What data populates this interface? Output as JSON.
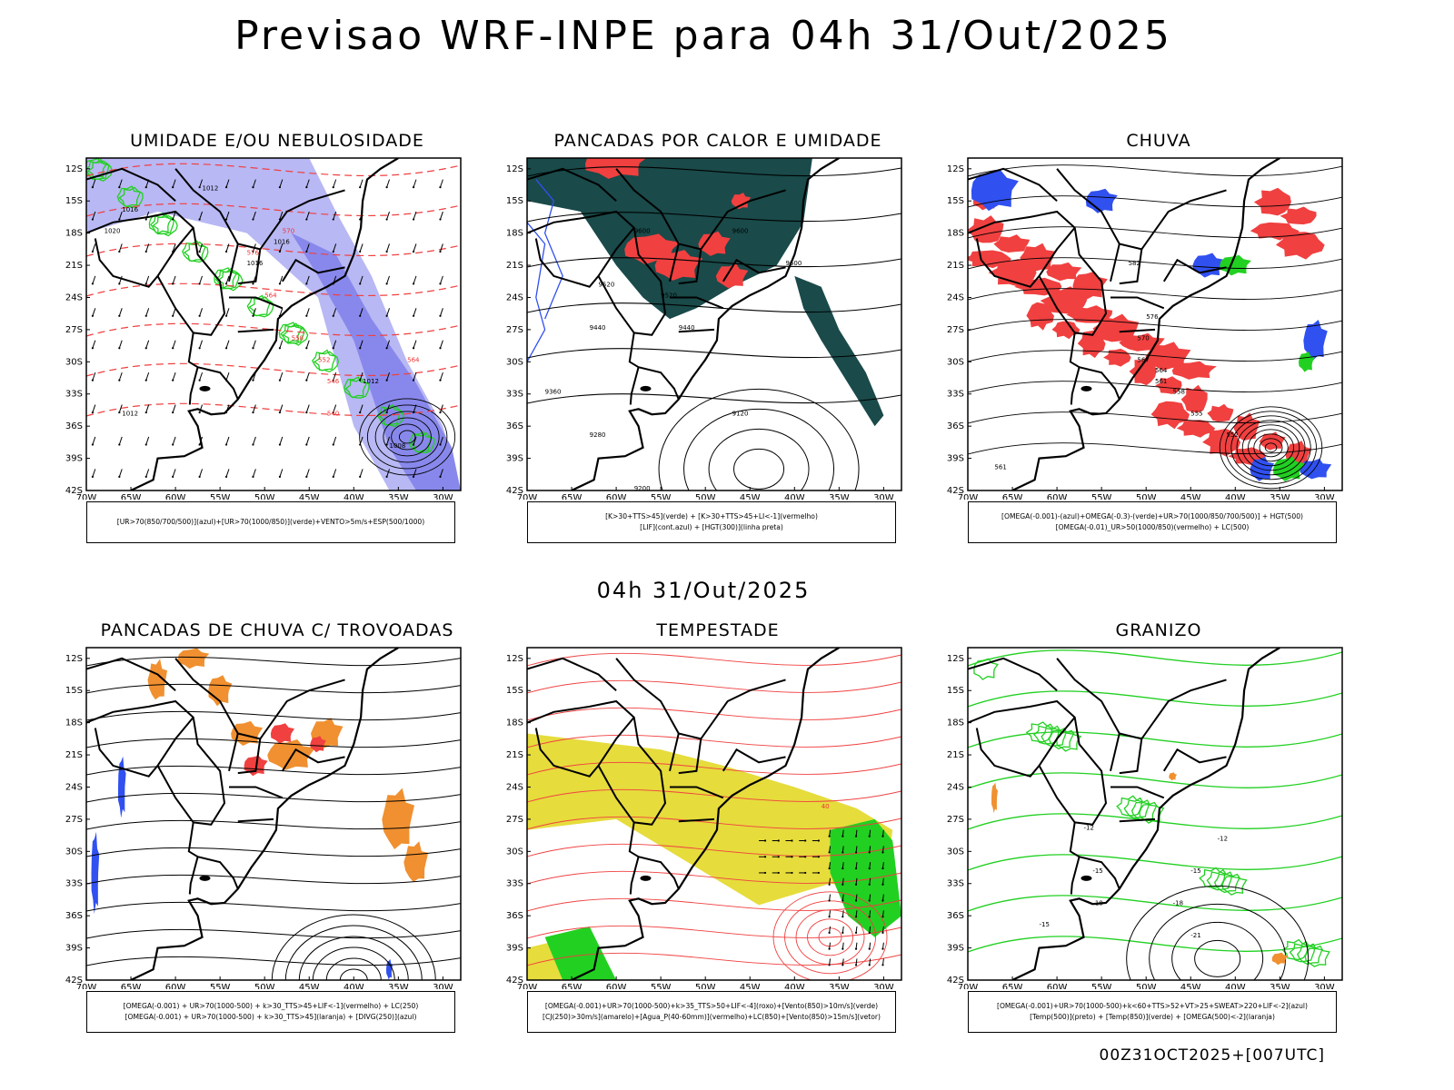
{
  "header": {
    "title": "Previsao WRF-INPE  para 04h 31/Out/2025",
    "mid_title": "04h 31/Out/2025",
    "footer": "00Z31OCT2025+[007UTC]"
  },
  "axes": {
    "lat_labels": [
      "12S",
      "15S",
      "18S",
      "21S",
      "24S",
      "27S",
      "30S",
      "33S",
      "36S",
      "39S",
      "42S"
    ],
    "lon_labels": [
      "70W",
      "65W",
      "60W",
      "55W",
      "50W",
      "45W",
      "40W",
      "35W",
      "30W"
    ]
  },
  "colors": {
    "blue": "#3050f0",
    "light_blue": "#b8b8f4",
    "mid_blue": "#8888ec",
    "green": "#22d022",
    "red": "#f04040",
    "dark_teal": "#1a4a4a",
    "orange": "#f09030",
    "yellow": "#e6dc3c",
    "black": "#000000"
  },
  "panels": [
    {
      "id": "umidade",
      "title": "UMIDADE E/OU NEBULOSIDADE",
      "legend": [
        "[UR>70(850/700/500)](azul)+[UR>70(1000/850)](verde)+VENTO>5m/s+ESP(500/1000)"
      ],
      "labels": [
        {
          "text": "1012",
          "color": "black"
        },
        {
          "text": "1016",
          "color": "black"
        },
        {
          "text": "1020",
          "color": "black"
        },
        {
          "text": "1012",
          "color": "black"
        },
        {
          "text": "1016",
          "color": "black"
        },
        {
          "text": "1016",
          "color": "black"
        },
        {
          "text": "1012",
          "color": "black"
        },
        {
          "text": "1008",
          "color": "black"
        },
        {
          "text": "570",
          "color": "red"
        },
        {
          "text": "576",
          "color": "red"
        },
        {
          "text": "564",
          "color": "red"
        },
        {
          "text": "558",
          "color": "red"
        },
        {
          "text": "552",
          "color": "red"
        },
        {
          "text": "546",
          "color": "red"
        },
        {
          "text": "540",
          "color": "red"
        },
        {
          "text": "564",
          "color": "red"
        }
      ]
    },
    {
      "id": "pancadas-calor",
      "title": "PANCADAS POR CALOR E UMIDADE",
      "legend": [
        "[K>30+TTS>45](verde) + [K>30+TTS>45+LI<-1](vermelho)",
        "[LIF](cont.azul) + [HGT(300)](linha preta)"
      ],
      "labels": [
        {
          "text": "9600",
          "color": "black"
        },
        {
          "text": "9600",
          "color": "black"
        },
        {
          "text": "9520",
          "color": "black"
        },
        {
          "text": "9520",
          "color": "black"
        },
        {
          "text": "9440",
          "color": "black"
        },
        {
          "text": "9440",
          "color": "black"
        },
        {
          "text": "9360",
          "color": "black"
        },
        {
          "text": "9280",
          "color": "black"
        },
        {
          "text": "9200",
          "color": "black"
        },
        {
          "text": "9120",
          "color": "black"
        },
        {
          "text": "9600",
          "color": "black"
        }
      ]
    },
    {
      "id": "chuva",
      "title": "CHUVA",
      "legend": [
        "[OMEGA(-0.001)-(azul)+OMEGA(-0.3)-(verde)+UR>70(1000/850/700/500)] + HGT(500)",
        "[OMEGA(-0.01)_UR>50(1000/850)(vermelho) + LC(500)"
      ],
      "labels": [
        {
          "text": "582",
          "color": "black"
        },
        {
          "text": "576",
          "color": "black"
        },
        {
          "text": "570",
          "color": "black"
        },
        {
          "text": "567",
          "color": "black"
        },
        {
          "text": "564",
          "color": "black"
        },
        {
          "text": "561",
          "color": "black"
        },
        {
          "text": "558",
          "color": "black"
        },
        {
          "text": "555",
          "color": "black"
        },
        {
          "text": "552",
          "color": "black"
        },
        {
          "text": "561",
          "color": "black"
        }
      ]
    },
    {
      "id": "pancadas-trovoadas",
      "title": "PANCADAS DE CHUVA C/ TROVOADAS",
      "legend": [
        "[OMEGA(-0.001) + UR>70(1000-500) + k>30_TTS>45+LIF<-1](vermelho) + LC(250)",
        "[OMEGA(-0.001) + UR>70(1000-500) + k>30_TTS>45](laranja) + [DIVG(250)](azul)"
      ],
      "labels": []
    },
    {
      "id": "tempestade",
      "title": "TEMPESTADE",
      "legend": [
        "[OMEGA(-0.001)+UR>70(1000-500)+k>35_TTS>50+LIF<-4](roxo)+[Vento(850)>10m/s](verde)",
        "[CJ(250)>30m/s](amarelo)+[Agua_P(40-60mm)](vermelho)+LC(850)+[Vento(850)>15m/s](vetor)"
      ],
      "labels": [
        {
          "text": "40",
          "color": "red"
        }
      ]
    },
    {
      "id": "granizo",
      "title": "GRANIZO",
      "legend": [
        "[OMEGA(-0.001)+UR>70(1000-500)+k<60+TTS>52+VT>25+SWEAT>220+LIF<-2](azul)",
        "[Temp(500)](preto) + [Temp(850)](verde) + [OMEGA(500)<-2](laranja)"
      ],
      "labels": [
        {
          "text": "-12",
          "color": "black"
        },
        {
          "text": "-12",
          "color": "black"
        },
        {
          "text": "-15",
          "color": "black"
        },
        {
          "text": "-15",
          "color": "black"
        },
        {
          "text": "-18",
          "color": "black"
        },
        {
          "text": "-18",
          "color": "black"
        },
        {
          "text": "-21",
          "color": "black"
        },
        {
          "text": "-15",
          "color": "black"
        }
      ]
    }
  ]
}
